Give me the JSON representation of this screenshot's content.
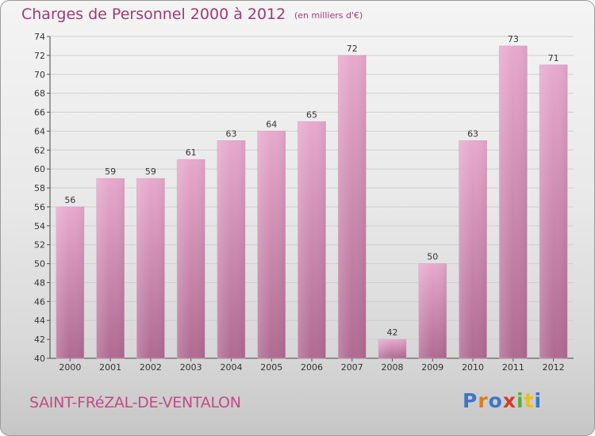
{
  "header": {
    "title": "Charges de Personnel 2000 à 2012",
    "unit": "(en milliers d'€)"
  },
  "footer": {
    "commune": "SAINT-FRéZAL-DE-VENTALON",
    "brand": [
      "P",
      "r",
      "o",
      "x",
      "i",
      "t",
      "i"
    ]
  },
  "colors": {
    "title": "#a03a73",
    "commune": "#c44a86",
    "bar_light": "#e7a9cd",
    "bar_dark": "#b06a92",
    "brand": [
      "#3a77c6",
      "#e07b1a",
      "#3a77c6",
      "#d63a2a",
      "#62a83a",
      "#e8c21a",
      "#3a77c6"
    ]
  },
  "chart_data": {
    "type": "bar",
    "title": "Charges de Personnel 2000 à 2012",
    "subtitle": "(en milliers d'€)",
    "categories": [
      "2000",
      "2001",
      "2002",
      "2003",
      "2004",
      "2005",
      "2006",
      "2007",
      "2008",
      "2009",
      "2010",
      "2011",
      "2012"
    ],
    "values": [
      56,
      59,
      59,
      61,
      63,
      64,
      65,
      72,
      42,
      50,
      63,
      73,
      71
    ],
    "ylim": [
      40,
      74
    ],
    "yticks": [
      "40",
      "42",
      "44",
      "46",
      "48",
      "50",
      "52",
      "54",
      "56",
      "58",
      "60",
      "62",
      "64",
      "66",
      "68",
      "70",
      "72",
      "74"
    ],
    "grid": true,
    "xlabel": "",
    "ylabel": ""
  }
}
